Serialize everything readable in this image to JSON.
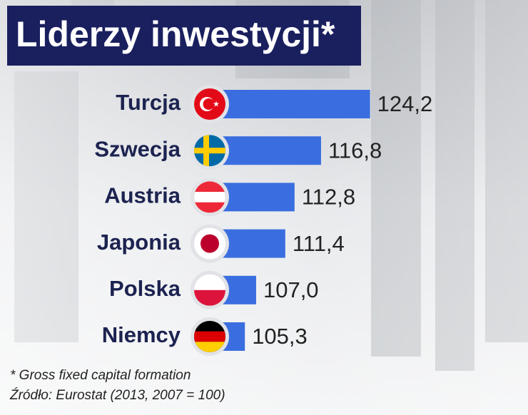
{
  "chart_data": {
    "type": "bar",
    "orientation": "horizontal",
    "title": "Liderzy inwestycji*",
    "categories": [
      "Turcja",
      "Szwecja",
      "Austria",
      "Japonia",
      "Polska",
      "Niemcy"
    ],
    "values": [
      124.2,
      116.8,
      112.8,
      111.4,
      107.0,
      105.3
    ],
    "value_labels": [
      "124,2",
      "116,8",
      "112,8",
      "111,4",
      "107,0",
      "105,3"
    ],
    "color": "#3a6ee0",
    "xlim": [
      100,
      126.5
    ],
    "notes": [
      "* Gross fixed capital formation",
      "Źródło: Eurostat (2013, 2007 = 100)"
    ]
  }
}
